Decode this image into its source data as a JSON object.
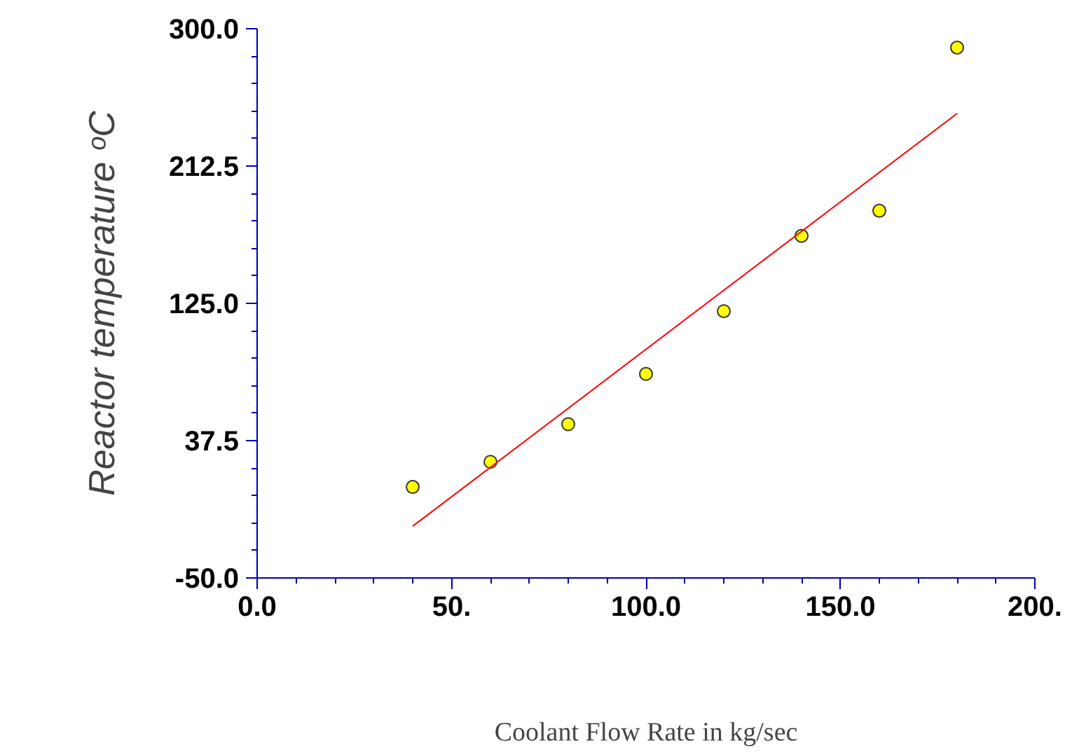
{
  "chart_data": {
    "type": "scatter",
    "xlabel": "Coolant Flow Rate in kg/sec",
    "ylabel": "Reactor temperature ᵒC",
    "x": [
      40,
      60,
      80,
      100,
      120,
      140,
      160,
      180
    ],
    "series": [
      {
        "color": "#ffff00",
        "values": [
          8,
          24,
          48,
          80,
          120,
          168,
          184,
          288
        ]
      },
      {
        "type": "line",
        "color": "#ff0000",
        "x": [
          40,
          180
        ],
        "values": [
          -17,
          246
        ],
        "marker": "none"
      }
    ],
    "xlim": [
      0,
      200
    ],
    "ylim": [
      -50,
      300
    ],
    "xticks": [
      {
        "value": 0,
        "label": "0.0"
      },
      {
        "value": 10,
        "label": null
      },
      {
        "value": 20,
        "label": null
      },
      {
        "value": 30,
        "label": null
      },
      {
        "value": 40,
        "label": null
      },
      {
        "value": 50,
        "label": "50."
      },
      {
        "value": 60,
        "label": null
      },
      {
        "value": 70,
        "label": null
      },
      {
        "value": 80,
        "label": null
      },
      {
        "value": 90,
        "label": null
      },
      {
        "value": 100,
        "label": "100.0"
      },
      {
        "value": 110,
        "label": null
      },
      {
        "value": 120,
        "label": null
      },
      {
        "value": 130,
        "label": null
      },
      {
        "value": 140,
        "label": null
      },
      {
        "value": 150,
        "label": "150.0"
      },
      {
        "value": 160,
        "label": null
      },
      {
        "value": 170,
        "label": null
      },
      {
        "value": 180,
        "label": null
      },
      {
        "value": 190,
        "label": null
      },
      {
        "value": 200,
        "label": "200."
      }
    ],
    "yticks": [
      {
        "value": -50,
        "label": "-50.0"
      },
      {
        "value": -32.5,
        "label": null
      },
      {
        "value": -15,
        "label": null
      },
      {
        "value": 2.5,
        "label": null
      },
      {
        "value": 20,
        "label": null
      },
      {
        "value": 37.5,
        "label": "37.5"
      },
      {
        "value": 55,
        "label": null
      },
      {
        "value": 72.5,
        "label": null
      },
      {
        "value": 90,
        "label": null
      },
      {
        "value": 107.5,
        "label": null
      },
      {
        "value": 125,
        "label": "125.0"
      },
      {
        "value": 142.5,
        "label": null
      },
      {
        "value": 160,
        "label": null
      },
      {
        "value": 177.5,
        "label": null
      },
      {
        "value": 195,
        "label": null
      },
      {
        "value": 212.5,
        "label": "212.5"
      },
      {
        "value": 230,
        "label": null
      },
      {
        "value": 247.5,
        "label": null
      },
      {
        "value": 265,
        "label": null
      },
      {
        "value": 282.5,
        "label": null
      },
      {
        "value": 300,
        "label": "300.0"
      }
    ],
    "grid": false,
    "marker": "circle"
  }
}
